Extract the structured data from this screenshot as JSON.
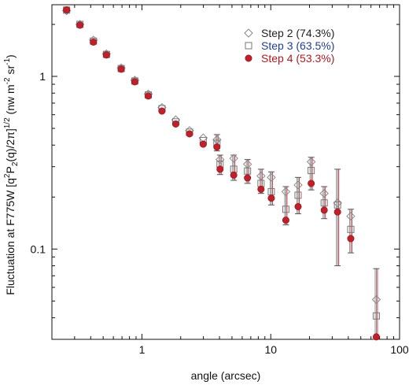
{
  "chart_data": {
    "type": "scatter",
    "title": "",
    "xlabel": "angle (arcsec)",
    "ylabel": {
      "base": "Fluctuation at F775W  [q",
      "sup1": "2",
      "mid1": "P",
      "sub1": "2",
      "mid2": "(q)/2π]",
      "sup2": "1/2",
      "mid3": "  (nw m",
      "sup3": "-2",
      "mid4": " sr",
      "sup4": "-1",
      "end": ")"
    },
    "xscale": "log",
    "yscale": "log",
    "xlim": [
      0.2,
      100
    ],
    "ylim": [
      0.03,
      2.6
    ],
    "xticks": [
      1,
      10,
      100
    ],
    "xtick_labels": [
      "1",
      "10",
      "100"
    ],
    "yticks": [
      0.1,
      1
    ],
    "ytick_labels": [
      "0.1",
      "1"
    ],
    "grid": false,
    "legend_position": "top-right",
    "series": [
      {
        "name": "Step 2 (74.3%)",
        "marker": "diamond",
        "color": "#888888",
        "text_color": "#222222",
        "points": [
          {
            "x": 0.26,
            "y": 2.4
          },
          {
            "x": 0.33,
            "y": 2.0
          },
          {
            "x": 0.42,
            "y": 1.62
          },
          {
            "x": 0.53,
            "y": 1.35
          },
          {
            "x": 0.69,
            "y": 1.12
          },
          {
            "x": 0.88,
            "y": 0.95
          },
          {
            "x": 1.12,
            "y": 0.79
          },
          {
            "x": 1.43,
            "y": 0.66
          },
          {
            "x": 1.83,
            "y": 0.56
          },
          {
            "x": 2.34,
            "y": 0.485
          },
          {
            "x": 2.99,
            "y": 0.44
          },
          {
            "x": 3.82,
            "y": 0.43
          },
          {
            "x": 4.04,
            "y": 0.33
          },
          {
            "x": 5.16,
            "y": 0.335
          },
          {
            "x": 6.6,
            "y": 0.31
          },
          {
            "x": 8.4,
            "y": 0.265
          },
          {
            "x": 10.1,
            "y": 0.26
          },
          {
            "x": 13.1,
            "y": 0.215
          },
          {
            "x": 16.3,
            "y": 0.235
          },
          {
            "x": 20.6,
            "y": 0.32
          },
          {
            "x": 26.0,
            "y": 0.21
          },
          {
            "x": 33.0,
            "y": 0.185
          },
          {
            "x": 41.8,
            "y": 0.155
          },
          {
            "x": 66.0,
            "y": 0.051
          }
        ]
      },
      {
        "name": "Step 3 (63.5%)",
        "marker": "square",
        "color": "#777777",
        "text_color": "#1f3f8c",
        "points": [
          {
            "x": 0.26,
            "y": 2.42
          },
          {
            "x": 0.33,
            "y": 2.0
          },
          {
            "x": 0.42,
            "y": 1.6
          },
          {
            "x": 0.53,
            "y": 1.34
          },
          {
            "x": 0.69,
            "y": 1.11
          },
          {
            "x": 0.88,
            "y": 0.94
          },
          {
            "x": 1.12,
            "y": 0.78
          },
          {
            "x": 1.43,
            "y": 0.65
          },
          {
            "x": 1.83,
            "y": 0.545
          },
          {
            "x": 2.34,
            "y": 0.475
          },
          {
            "x": 2.99,
            "y": 0.425
          },
          {
            "x": 3.82,
            "y": 0.41
          },
          {
            "x": 4.04,
            "y": 0.31
          },
          {
            "x": 5.16,
            "y": 0.29
          },
          {
            "x": 6.6,
            "y": 0.283
          },
          {
            "x": 8.4,
            "y": 0.24
          },
          {
            "x": 10.1,
            "y": 0.215
          },
          {
            "x": 13.1,
            "y": 0.17
          },
          {
            "x": 16.3,
            "y": 0.205
          },
          {
            "x": 20.6,
            "y": 0.285
          },
          {
            "x": 26.0,
            "y": 0.185
          },
          {
            "x": 33.0,
            "y": 0.18
          },
          {
            "x": 41.8,
            "y": 0.13
          },
          {
            "x": 66.0,
            "y": 0.041
          }
        ]
      },
      {
        "name": "Step 4 (53.3%)",
        "marker": "circle",
        "color": "#c0202a",
        "text_color": "#b01820",
        "points": [
          {
            "x": 0.26,
            "y": 2.43
          },
          {
            "x": 0.33,
            "y": 1.98
          },
          {
            "x": 0.42,
            "y": 1.58
          },
          {
            "x": 0.53,
            "y": 1.33
          },
          {
            "x": 0.69,
            "y": 1.1
          },
          {
            "x": 0.88,
            "y": 0.93
          },
          {
            "x": 1.12,
            "y": 0.77
          },
          {
            "x": 1.43,
            "y": 0.63
          },
          {
            "x": 1.83,
            "y": 0.53
          },
          {
            "x": 2.34,
            "y": 0.465
          },
          {
            "x": 2.99,
            "y": 0.405
          },
          {
            "x": 3.82,
            "y": 0.39
          },
          {
            "x": 4.04,
            "y": 0.29
          },
          {
            "x": 5.16,
            "y": 0.268
          },
          {
            "x": 6.6,
            "y": 0.258
          },
          {
            "x": 8.4,
            "y": 0.222
          },
          {
            "x": 10.1,
            "y": 0.197
          },
          {
            "x": 13.1,
            "y": 0.147
          },
          {
            "x": 16.3,
            "y": 0.176
          },
          {
            "x": 20.6,
            "y": 0.24
          },
          {
            "x": 26.0,
            "y": 0.168
          },
          {
            "x": 33.0,
            "y": 0.164
          },
          {
            "x": 41.8,
            "y": 0.115
          },
          {
            "x": 66.0,
            "y": 0.031
          }
        ]
      }
    ],
    "error_bars": [
      {
        "x": 3.82,
        "low": 0.37,
        "high": 0.46
      },
      {
        "x": 4.04,
        "low": 0.27,
        "high": 0.35
      },
      {
        "x": 5.16,
        "low": 0.25,
        "high": 0.35
      },
      {
        "x": 6.6,
        "low": 0.24,
        "high": 0.33
      },
      {
        "x": 8.4,
        "low": 0.21,
        "high": 0.29
      },
      {
        "x": 10.1,
        "low": 0.18,
        "high": 0.28
      },
      {
        "x": 13.1,
        "low": 0.138,
        "high": 0.23
      },
      {
        "x": 16.3,
        "low": 0.16,
        "high": 0.26
      },
      {
        "x": 20.6,
        "low": 0.22,
        "high": 0.34
      },
      {
        "x": 26.0,
        "low": 0.15,
        "high": 0.23
      },
      {
        "x": 33.0,
        "low": 0.08,
        "high": 0.29
      },
      {
        "x": 41.8,
        "low": 0.095,
        "high": 0.17
      },
      {
        "x": 66.0,
        "low": 0.03,
        "high": 0.077
      }
    ],
    "error_bar_colors": [
      "#888888",
      "#777777",
      "#c0202a"
    ]
  }
}
